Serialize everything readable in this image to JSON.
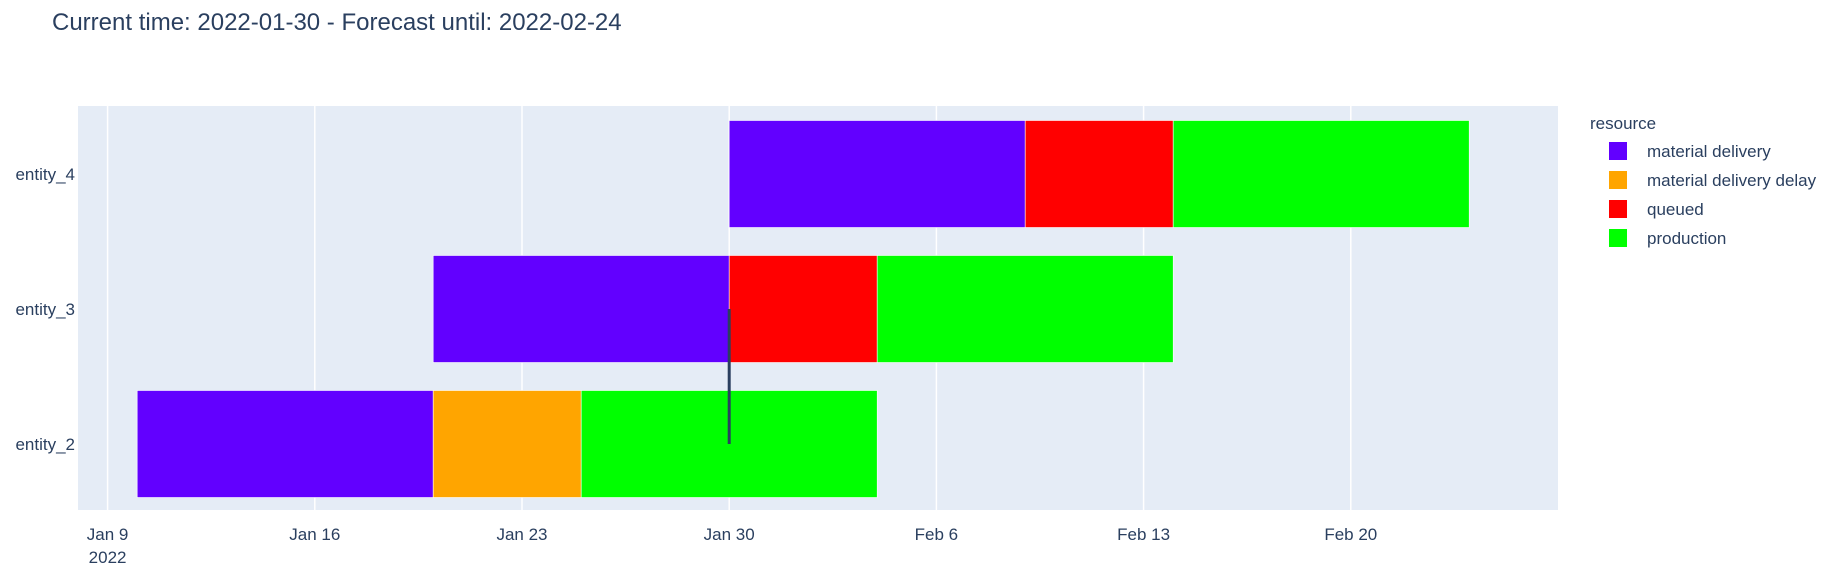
{
  "chart_data": {
    "type": "gantt",
    "title": "Current time: 2022-01-30  -  Forecast until: 2022-02-24",
    "xaxis": {
      "range": [
        "2022-01-08",
        "2022-02-27"
      ],
      "ticks": [
        {
          "date": "2022-01-09",
          "label": "Jan 9",
          "sublabel": "2022"
        },
        {
          "date": "2022-01-16",
          "label": "Jan 16"
        },
        {
          "date": "2022-01-23",
          "label": "Jan 23"
        },
        {
          "date": "2022-01-30",
          "label": "Jan 30"
        },
        {
          "date": "2022-02-06",
          "label": "Feb 6"
        },
        {
          "date": "2022-02-13",
          "label": "Feb 13"
        },
        {
          "date": "2022-02-20",
          "label": "Feb 20"
        }
      ],
      "grid": true
    },
    "yaxis": {
      "categories": [
        "entity_4",
        "entity_3",
        "entity_2"
      ],
      "grid": false
    },
    "legend": {
      "title": "resource",
      "position": "right",
      "items": [
        {
          "name": "material delivery",
          "color": "#6200ff"
        },
        {
          "name": "material delivery delay",
          "color": "#ffa500"
        },
        {
          "name": "queued",
          "color": "#ff0000"
        },
        {
          "name": "production",
          "color": "#00ff00"
        }
      ]
    },
    "tasks": [
      {
        "entity": "entity_4",
        "resource": "material delivery",
        "start": "2022-01-30",
        "end": "2022-02-09"
      },
      {
        "entity": "entity_4",
        "resource": "queued",
        "start": "2022-02-09",
        "end": "2022-02-14"
      },
      {
        "entity": "entity_4",
        "resource": "production",
        "start": "2022-02-14",
        "end": "2022-02-24"
      },
      {
        "entity": "entity_3",
        "resource": "material delivery",
        "start": "2022-01-20",
        "end": "2022-01-30"
      },
      {
        "entity": "entity_3",
        "resource": "queued",
        "start": "2022-01-30",
        "end": "2022-02-04"
      },
      {
        "entity": "entity_3",
        "resource": "production",
        "start": "2022-02-04",
        "end": "2022-02-14"
      },
      {
        "entity": "entity_2",
        "resource": "material delivery",
        "start": "2022-01-10",
        "end": "2022-01-20"
      },
      {
        "entity": "entity_2",
        "resource": "material delivery delay",
        "start": "2022-01-20",
        "end": "2022-01-25"
      },
      {
        "entity": "entity_2",
        "resource": "production",
        "start": "2022-01-25",
        "end": "2022-02-04"
      }
    ],
    "current_time_marker": {
      "date": "2022-01-30",
      "color": "#2a3f5f"
    },
    "plot_background": "#e5ecf6",
    "gridline_color": "#ffffff"
  }
}
